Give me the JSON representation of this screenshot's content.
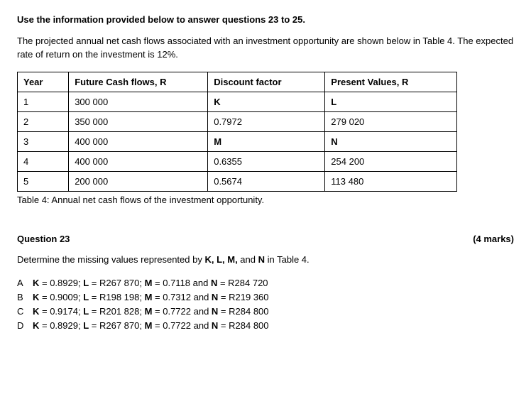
{
  "instruction": "Use the information provided below to answer questions 23 to 25.",
  "description": "The projected annual net cash flows associated with an investment opportunity are shown below in Table 4. The expected rate of return on the investment is 12%.",
  "table": {
    "headers": {
      "year": "Year",
      "cashflows": "Future Cash flows, R",
      "discount": "Discount factor",
      "pv": "Present Values, R"
    },
    "rows": [
      {
        "year": "1",
        "cash": "300 000",
        "disc": "K",
        "disc_bold": true,
        "pv": "L",
        "pv_bold": true
      },
      {
        "year": "2",
        "cash": "350 000",
        "disc": "0.7972",
        "disc_bold": false,
        "pv": "279 020",
        "pv_bold": false
      },
      {
        "year": "3",
        "cash": "400 000",
        "disc": "M",
        "disc_bold": true,
        "pv": "N",
        "pv_bold": true
      },
      {
        "year": "4",
        "cash": "400 000",
        "disc": "0.6355",
        "disc_bold": false,
        "pv": "254 200",
        "pv_bold": false
      },
      {
        "year": "5",
        "cash": "200 000",
        "disc": "0.5674",
        "disc_bold": false,
        "pv": "113 480",
        "pv_bold": false
      }
    ],
    "caption": "Table 4: Annual net cash flows of the investment opportunity."
  },
  "question": {
    "label": "Question 23",
    "marks": "(4 marks)",
    "text_prefix": "Determine the missing values represented by ",
    "text_k": "K, L, M,",
    "text_mid": " and ",
    "text_n": "N",
    "text_suffix": " in Table 4.",
    "options": [
      {
        "letter": "A",
        "k": "K",
        "kv": " = 0.8929; ",
        "l": "L",
        "lv": " = R267 870; ",
        "m": "M",
        "mv": " = 0.7118 and ",
        "n": "N",
        "nv": " = R284 720"
      },
      {
        "letter": "B",
        "k": "K",
        "kv": " = 0.9009; ",
        "l": "L",
        "lv": " = R198 198; ",
        "m": "M",
        "mv": " = 0.7312 and ",
        "n": "N",
        "nv": " = R219 360"
      },
      {
        "letter": "C",
        "k": "K",
        "kv": " = 0.9174; ",
        "l": "L",
        "lv": " = R201 828; ",
        "m": "M",
        "mv": " = 0.7722 and ",
        "n": "N",
        "nv": " = R284 800"
      },
      {
        "letter": "D",
        "k": "K",
        "kv": " = 0.8929; ",
        "l": "L",
        "lv": " = R267 870; ",
        "m": "M",
        "mv": " = 0.7722 and ",
        "n": "N",
        "nv": " = R284 800"
      }
    ]
  }
}
